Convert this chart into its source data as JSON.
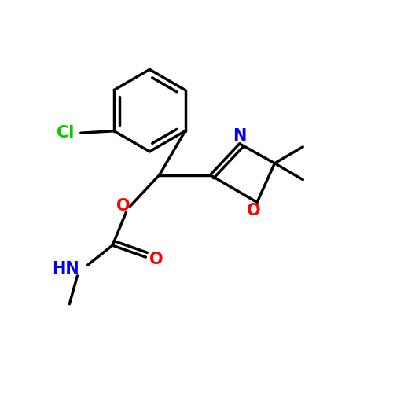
{
  "bg_color": "#ffffff",
  "atom_colors": {
    "N": "#0000ff",
    "O": "#ff0000",
    "Cl": "#00cc00"
  },
  "bond_lw": 2.5,
  "font_size": 15,
  "fig_size": [
    5.0,
    5.0
  ],
  "dpi": 100,
  "xlim": [
    0,
    10
  ],
  "ylim": [
    0,
    10
  ]
}
